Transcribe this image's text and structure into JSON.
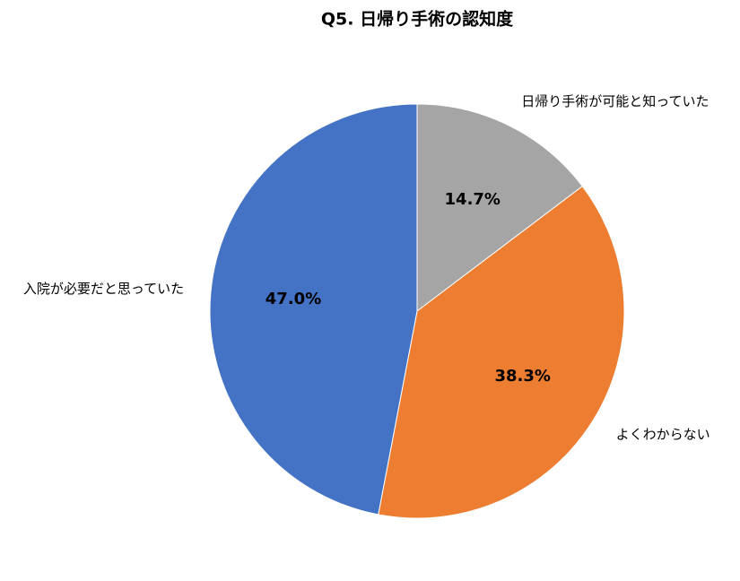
{
  "chart_data": {
    "type": "pie",
    "title": "Q5. 日帰り手術の認知度",
    "categories": [
      "日帰り手術が可能と知っていた",
      "よくわからない",
      "入院が必要だと思っていた"
    ],
    "values": [
      14.7,
      38.3,
      47.0
    ],
    "value_labels": [
      "14.7%",
      "38.3%",
      "47.0%"
    ],
    "colors": [
      "#a5a5a5",
      "#ed7d31",
      "#4472c4"
    ]
  }
}
